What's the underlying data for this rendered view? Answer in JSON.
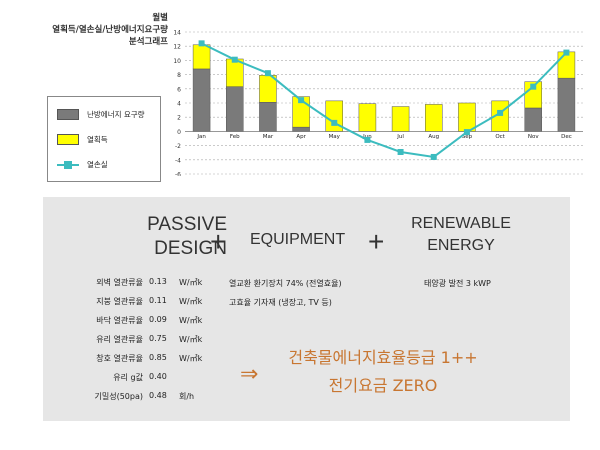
{
  "chart_title": [
    "월별",
    "열획득/열손실/난방에너지요구량",
    "분석그래프"
  ],
  "legend": [
    {
      "label": "난방에너지 요구량",
      "kind": "bar",
      "color": "#7a7a7a"
    },
    {
      "label": "열획득",
      "kind": "bar",
      "color": "#ffff00"
    },
    {
      "label": "열손실",
      "kind": "line",
      "color": "#3cbcbf"
    }
  ],
  "chart_data": {
    "type": "bar",
    "categories": [
      "Jan",
      "Feb",
      "Mar",
      "Apr",
      "May",
      "Jun",
      "Jul",
      "Aug",
      "Sep",
      "Oct",
      "Nov",
      "Dec"
    ],
    "series": [
      {
        "name": "난방에너지 요구량",
        "kind": "stacked-bar",
        "color": "#7a7a7a",
        "values": [
          8.8,
          6.3,
          4.1,
          0.6,
          0,
          0,
          0,
          0,
          0,
          0,
          3.3,
          7.5
        ]
      },
      {
        "name": "열획득",
        "kind": "stacked-bar",
        "color": "#ffff00",
        "values": [
          3.4,
          3.9,
          3.8,
          4.3,
          4.3,
          3.9,
          3.5,
          3.8,
          4.0,
          4.3,
          3.7,
          3.7
        ]
      },
      {
        "name": "열손실",
        "kind": "line",
        "color": "#3cbcbf",
        "values": [
          12.4,
          10.1,
          8.2,
          4.4,
          1.2,
          -1.2,
          -2.9,
          -3.6,
          -0.1,
          2.6,
          6.3,
          11.1
        ]
      }
    ],
    "y_ticks": [
      14,
      12,
      10,
      8,
      6,
      4,
      2,
      0,
      -2,
      -4,
      -6
    ],
    "ylim": [
      -6,
      14
    ],
    "grid": "horizontal dotted"
  },
  "passive": {
    "line1": "PASSIVE",
    "line2": "DESIGN"
  },
  "plus": "+",
  "equipment": "EQUIPMENT",
  "renewable": {
    "line1": "RENEWABLE",
    "line2": "ENERGY"
  },
  "passive_specs": [
    {
      "label": "외벽 열관류율",
      "value": "0.13",
      "unit": "W/㎡k"
    },
    {
      "label": "지붕 열관류율",
      "value": "0.11",
      "unit": "W/㎡k"
    },
    {
      "label": "바닥 열관류율",
      "value": "0.09",
      "unit": "W/㎡k"
    },
    {
      "label": "유리 열관류율",
      "value": "0.75",
      "unit": "W/㎡k"
    },
    {
      "label": "창호 열관류율",
      "value": "0.85",
      "unit": "W/㎡k"
    },
    {
      "label": "유리 g값",
      "value": "0.40",
      "unit": ""
    },
    {
      "label": "기밀성(50pa)",
      "value": "0.48",
      "unit": "회/h"
    }
  ],
  "equipment_lines": [
    "열교환 환기장치 74% (전열효율)",
    "고효율 기자재 (냉장고, TV 등)"
  ],
  "renewable_line": "태양광 발전  3 kWP",
  "result": {
    "arrow": "⇒",
    "line1": "건축물에너지효율등급 1++",
    "line2": "전기요금 ZERO"
  }
}
